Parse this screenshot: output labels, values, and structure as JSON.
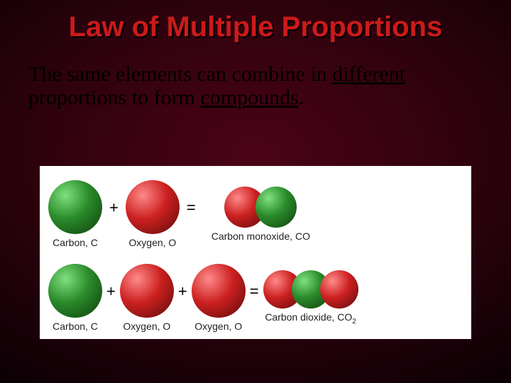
{
  "title": "Law of Multiple Proportions",
  "title_style": {
    "color": "#cc1a1a",
    "shadow": "#000",
    "fontsize": 40
  },
  "body": {
    "pre": "The same elements can combine in ",
    "u1": "different",
    "mid": " proportions to form ",
    "u2": "compounds",
    "post": ".",
    "fontsize": 30,
    "color": "#000000"
  },
  "colors": {
    "carbon": "#2a8a2a",
    "carbon_hi": "#7ee07e",
    "carbon_lo": "#0d3d0d",
    "oxygen": "#cc2020",
    "oxygen_hi": "#ff8a8a",
    "oxygen_lo": "#5a0a0a",
    "bg": "#ffffff"
  },
  "sizes": {
    "big": 76,
    "small": 58,
    "mol_small": 54
  },
  "labels": {
    "carbon": "Carbon, C",
    "oxygen": "Oxygen, O",
    "co": "Carbon monoxide, CO",
    "co2_pre": "Carbon dioxide, CO",
    "co2_sub": "2"
  },
  "ops": {
    "plus": "+",
    "equals": "="
  }
}
